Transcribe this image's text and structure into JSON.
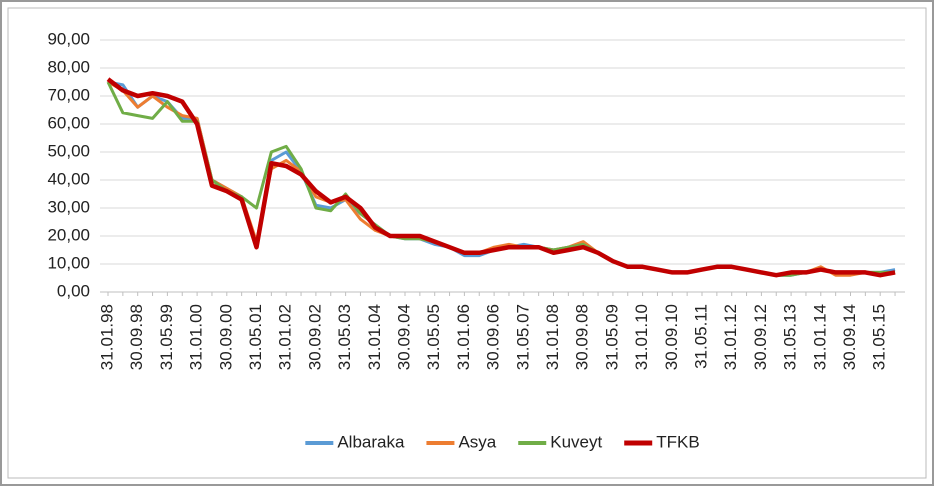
{
  "chart_data": {
    "type": "line",
    "categories": [
      "31.01.98",
      null,
      "30.09.98",
      null,
      "31.05.99",
      null,
      "31.01.00",
      null,
      "30.09.00",
      null,
      "31.05.01",
      null,
      "31.01.02",
      null,
      "30.09.02",
      null,
      "31.05.03",
      null,
      "31.01.04",
      null,
      "30.09.04",
      null,
      "31.05.05",
      null,
      "31.01.06",
      null,
      "30.09.06",
      null,
      "31.05.07",
      null,
      "31.01.08",
      null,
      "30.09.08",
      null,
      "31.05.09",
      null,
      "31.01.10",
      null,
      "30.09.10",
      null,
      "31.05.11",
      null,
      "31.01.12",
      null,
      "30.09.12",
      null,
      "31.05.13",
      null,
      "31.01.14",
      null,
      "30.09.14",
      null,
      "31.05.15",
      null
    ],
    "series": [
      {
        "name": "Albaraka",
        "color": "#5b9bd5",
        "values": [
          75,
          74,
          66,
          70,
          68,
          62,
          62,
          40,
          37,
          34,
          17,
          47,
          50,
          43,
          31,
          30,
          33,
          28,
          24,
          20,
          19,
          19,
          17,
          16,
          13,
          13,
          15,
          16,
          17,
          16,
          15,
          16,
          17,
          14,
          11,
          9,
          9,
          8,
          7,
          7,
          8,
          9,
          9,
          8,
          7,
          6,
          6,
          7,
          8,
          7,
          7,
          7,
          7,
          8
        ]
      },
      {
        "name": "Asya",
        "color": "#ed7d31",
        "values": [
          75,
          72,
          66,
          70,
          66,
          63,
          62,
          40,
          37,
          34,
          18,
          44,
          47,
          43,
          34,
          32,
          33,
          26,
          22,
          20,
          20,
          19,
          18,
          16,
          14,
          14,
          16,
          17,
          16,
          16,
          15,
          16,
          18,
          14,
          11,
          9,
          9,
          8,
          7,
          7,
          8,
          9,
          9,
          8,
          7,
          6,
          7,
          7,
          9,
          6,
          6,
          7,
          6,
          7
        ]
      },
      {
        "name": "Kuveyt",
        "color": "#70ad47",
        "values": [
          75,
          64,
          63,
          62,
          68,
          61,
          61,
          40,
          36,
          34,
          30,
          50,
          52,
          44,
          30,
          29,
          35,
          28,
          24,
          20,
          19,
          19,
          18,
          16,
          14,
          14,
          15,
          16,
          16,
          16,
          15,
          16,
          17,
          14,
          11,
          9,
          9,
          8,
          7,
          7,
          8,
          9,
          9,
          8,
          7,
          6,
          6,
          7,
          8,
          7,
          7,
          7,
          7,
          7
        ]
      },
      {
        "name": "TFKB",
        "color": "#c00000",
        "values": [
          76,
          72,
          70,
          71,
          70,
          68,
          60,
          38,
          36,
          33,
          16,
          46,
          45,
          42,
          36,
          32,
          34,
          30,
          23,
          20,
          20,
          20,
          18,
          16,
          14,
          14,
          15,
          16,
          16,
          16,
          14,
          15,
          16,
          14,
          11,
          9,
          9,
          8,
          7,
          7,
          8,
          9,
          9,
          8,
          7,
          6,
          7,
          7,
          8,
          7,
          7,
          7,
          6,
          7
        ]
      }
    ],
    "ylim": [
      0,
      90
    ],
    "yticks": [
      {
        "value": 0,
        "label": "0,00"
      },
      {
        "value": 10,
        "label": "10,00"
      },
      {
        "value": 20,
        "label": "20,00"
      },
      {
        "value": 30,
        "label": "30,00"
      },
      {
        "value": 40,
        "label": "40,00"
      },
      {
        "value": 50,
        "label": "50,00"
      },
      {
        "value": 60,
        "label": "60,00"
      },
      {
        "value": 70,
        "label": "70,00"
      },
      {
        "value": 80,
        "label": "80,00"
      },
      {
        "value": 90,
        "label": "90,00"
      }
    ],
    "grid": true,
    "legend": "bottom"
  }
}
